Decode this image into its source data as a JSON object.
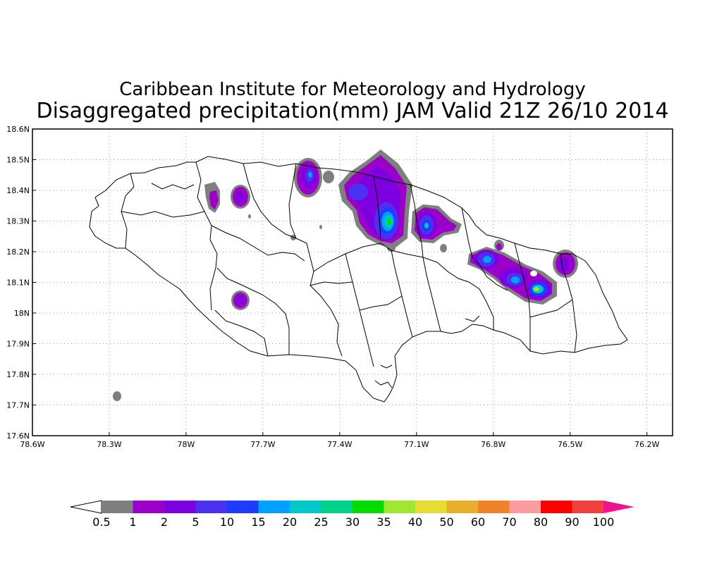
{
  "title": {
    "line1": "Caribbean Institute for Meteorology and Hydrology",
    "line2": "Disaggregated precipitation(mm) JAM Valid 21Z 26/10 2014"
  },
  "axes": {
    "lon_ticks": [
      "78.6W",
      "78.3W",
      "78W",
      "77.7W",
      "77.4W",
      "77.1W",
      "76.8W",
      "76.5W",
      "76.2W"
    ],
    "lat_ticks": [
      "18.6N",
      "18.5N",
      "18.4N",
      "18.3N",
      "18.2N",
      "18.1N",
      "18N",
      "17.9N",
      "17.8N",
      "17.7N",
      "17.6N"
    ]
  },
  "colorbar": {
    "colors": [
      "#7f7f7f",
      "#9b00c8",
      "#7d00e0",
      "#4b32f0",
      "#1e3cff",
      "#00a0ff",
      "#00c8c8",
      "#00d28c",
      "#00dc00",
      "#a0e632",
      "#e6dc32",
      "#e6af2d",
      "#f08228",
      "#fa9ba0",
      "#ff0000",
      "#f04040"
    ],
    "labels": [
      "0.5",
      "1",
      "2",
      "5",
      "10",
      "15",
      "20",
      "25",
      "30",
      "35",
      "40",
      "50",
      "60",
      "70",
      "80",
      "90",
      "100"
    ],
    "under_color": "#ffffff",
    "over_color": "#f0148c"
  },
  "chart_data": {
    "type": "heatmap",
    "title": "Disaggregated precipitation(mm) JAM Valid 21Z 26/10 2014",
    "xlim": [
      -78.6,
      -76.1
    ],
    "ylim": [
      17.6,
      18.6
    ],
    "precip_cells": [
      {
        "lon": -77.43,
        "lat": 18.44,
        "peak_mm": 12
      },
      {
        "lon": -77.12,
        "lat": 18.3,
        "peak_mm": 30
      },
      {
        "lon": -77.2,
        "lat": 18.41,
        "peak_mm": 5
      },
      {
        "lon": -76.98,
        "lat": 18.29,
        "peak_mm": 15
      },
      {
        "lon": -76.78,
        "lat": 18.18,
        "peak_mm": 15
      },
      {
        "lon": -76.66,
        "lat": 18.11,
        "peak_mm": 15
      },
      {
        "lon": -76.57,
        "lat": 18.07,
        "peak_mm": 30
      },
      {
        "lon": -76.45,
        "lat": 18.16,
        "peak_mm": 2
      },
      {
        "lon": -77.73,
        "lat": 18.38,
        "peak_mm": 5
      },
      {
        "lon": -77.84,
        "lat": 18.37,
        "peak_mm": 2
      },
      {
        "lon": -77.74,
        "lat": 18.04,
        "peak_mm": 5
      },
      {
        "lon": -78.27,
        "lat": 17.73,
        "peak_mm": 0.5
      }
    ]
  }
}
